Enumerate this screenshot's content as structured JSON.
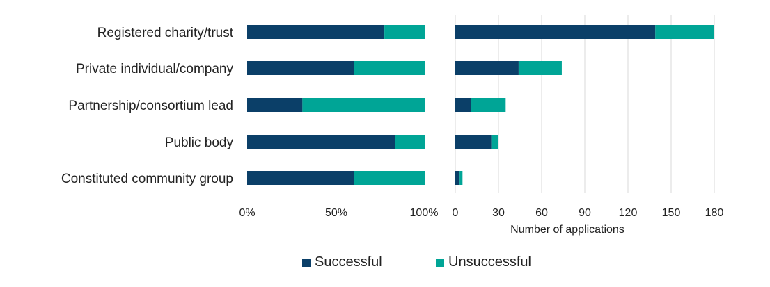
{
  "colors": {
    "successful": "#0b3f68",
    "unsuccessful": "#00a596",
    "grid": "#d9d9d9"
  },
  "legend": {
    "successful": "Successful",
    "unsuccessful": "Unsuccessful"
  },
  "chart_data": [
    {
      "type": "bar",
      "orientation": "horizontal",
      "stacked": "percent",
      "categories": [
        "Registered charity/trust",
        "Private individual/company",
        "Partnership/consortium lead",
        "Public body",
        "Constituted community group"
      ],
      "series": [
        {
          "name": "Successful",
          "values": [
            77,
            60,
            31,
            83,
            60
          ]
        },
        {
          "name": "Unsuccessful",
          "values": [
            23,
            40,
            69,
            17,
            40
          ]
        }
      ],
      "xlim": [
        0,
        100
      ],
      "xticks": [
        "0%",
        "50%",
        "100%"
      ],
      "xlabel": "",
      "grid": false
    },
    {
      "type": "bar",
      "orientation": "horizontal",
      "stacked": "count",
      "categories": [
        "Registered charity/trust",
        "Private individual/company",
        "Partnership/consortium lead",
        "Public body",
        "Constituted community group"
      ],
      "series": [
        {
          "name": "Successful",
          "values": [
            139,
            44,
            11,
            25,
            3
          ]
        },
        {
          "name": "Unsuccessful",
          "values": [
            41,
            30,
            24,
            5,
            2
          ]
        }
      ],
      "xlim": [
        0,
        180
      ],
      "xticks": [
        "0",
        "30",
        "60",
        "90",
        "120",
        "150",
        "180"
      ],
      "xlabel": "Number of applications",
      "grid": true
    }
  ]
}
